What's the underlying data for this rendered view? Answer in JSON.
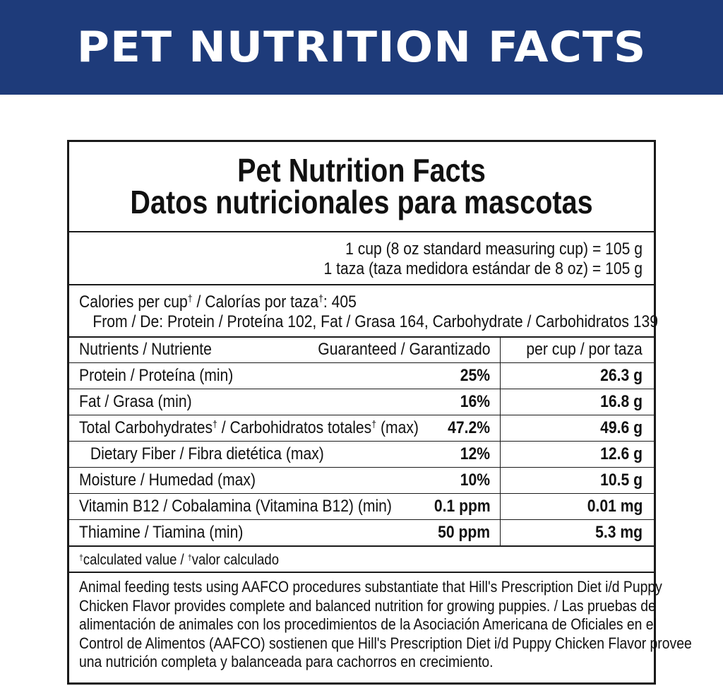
{
  "banner": {
    "title": "PET NUTRITION FACTS"
  },
  "label": {
    "title_en": "Pet Nutrition Facts",
    "title_es": "Datos nutricionales para mascotas",
    "serving": [
      "1 cup (8 oz standard measuring cup) = 105 g",
      "1 taza (taza medidora estándar de 8 oz) = 105 g"
    ],
    "calories": {
      "label_en": "Calories per cup",
      "label_es": " / Calorías por taza",
      "dagger": "†",
      "value_text": ": 405",
      "from": "From / De: Protein / Proteína 102, Fat / Grasa 164, Carbohydrate / Carbohidratos 139"
    },
    "table": {
      "headers": {
        "nutrient": "Nutrients / Nutriente",
        "guaranteed": "Guaranteed / Garantizado",
        "per_cup": "per cup / por taza"
      },
      "rows": [
        {
          "name": "Protein / Proteína (min)",
          "guaranteed": "25%",
          "per_cup": "26.3 g"
        },
        {
          "name": "Fat / Grasa (min)",
          "guaranteed": "16%",
          "per_cup": "16.8 g"
        },
        {
          "name_a": "Total Carbohydrates",
          "name_b": " / Carbohidratos totales",
          "name_c": " (max)",
          "guaranteed": "47.2%",
          "per_cup": "49.6 g"
        },
        {
          "name": "Dietary Fiber / Fibra dietética (max)",
          "guaranteed": "12%",
          "per_cup": "12.6 g"
        },
        {
          "name": "Moisture / Humedad (max)",
          "guaranteed": "10%",
          "per_cup": "10.5 g"
        },
        {
          "name": "Vitamin B12 / Cobalamina (Vitamina B12) (min)",
          "guaranteed": "0.1 ppm",
          "per_cup": "0.01 mg"
        },
        {
          "name": "Thiamine / Tiamina (min)",
          "guaranteed": "50 ppm",
          "per_cup": "5.3 mg"
        }
      ]
    },
    "footnote": {
      "dagger": "†",
      "text_a": "calculated value / ",
      "text_b": "valor calculado"
    },
    "aafco": [
      "Animal feeding tests using AAFCO procedures substantiate that Hill's Prescription Diet i/d Puppy",
      "Chicken Flavor provides complete and balanced nutrition for growing puppies. / Las pruebas de",
      "alimentación de animales con los procedimientos de la Asociación Americana de Oficiales en el",
      "Control de Alimentos (AAFCO) sostienen que Hill's Prescription Diet i/d Puppy Chicken Flavor provee",
      "una nutrición completa y balanceada para cachorros en crecimiento."
    ]
  },
  "colors": {
    "banner": "#1e3b7a",
    "text": "#111111",
    "rule": "#1a1a1a"
  }
}
